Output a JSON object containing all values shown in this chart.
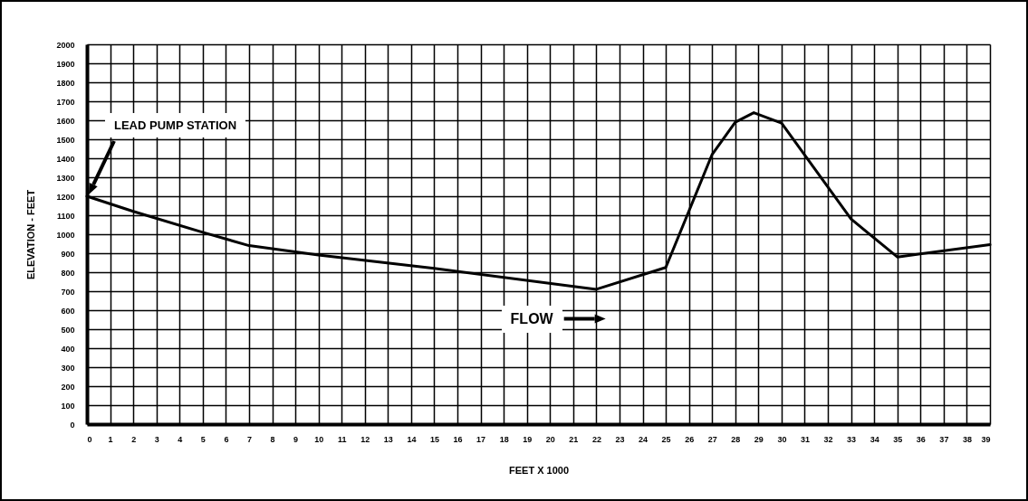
{
  "chart_data": {
    "type": "line",
    "xlabel": "FEET X 1000",
    "ylabel": "ELEVATION - FEET",
    "x": [
      0,
      2,
      5,
      7,
      10,
      15,
      22,
      25,
      27,
      28,
      28.8,
      30,
      33,
      35,
      39
    ],
    "series": [
      {
        "color": "#000000",
        "values": [
          1200,
          1120,
          1010,
          940,
          890,
          820,
          710,
          825,
          1420,
          1590,
          1640,
          1585,
          1080,
          880,
          945
        ]
      }
    ],
    "xlim": [
      0,
      39
    ],
    "ylim": [
      0,
      2000
    ],
    "xticks": [
      0,
      1,
      2,
      3,
      4,
      5,
      6,
      7,
      8,
      9,
      10,
      11,
      12,
      13,
      14,
      15,
      16,
      17,
      18,
      19,
      20,
      21,
      22,
      23,
      24,
      25,
      26,
      27,
      28,
      29,
      30,
      31,
      32,
      33,
      34,
      35,
      36,
      37,
      38,
      39
    ],
    "yticks": [
      0,
      100,
      200,
      300,
      400,
      500,
      600,
      700,
      800,
      900,
      1000,
      1100,
      1200,
      1300,
      1400,
      1500,
      1600,
      1700,
      1800,
      1900,
      2000
    ],
    "grid": true,
    "marker": "none",
    "line_style": "solid",
    "annotations": [
      "LEAD PUMP STATION",
      "FLOW"
    ]
  }
}
